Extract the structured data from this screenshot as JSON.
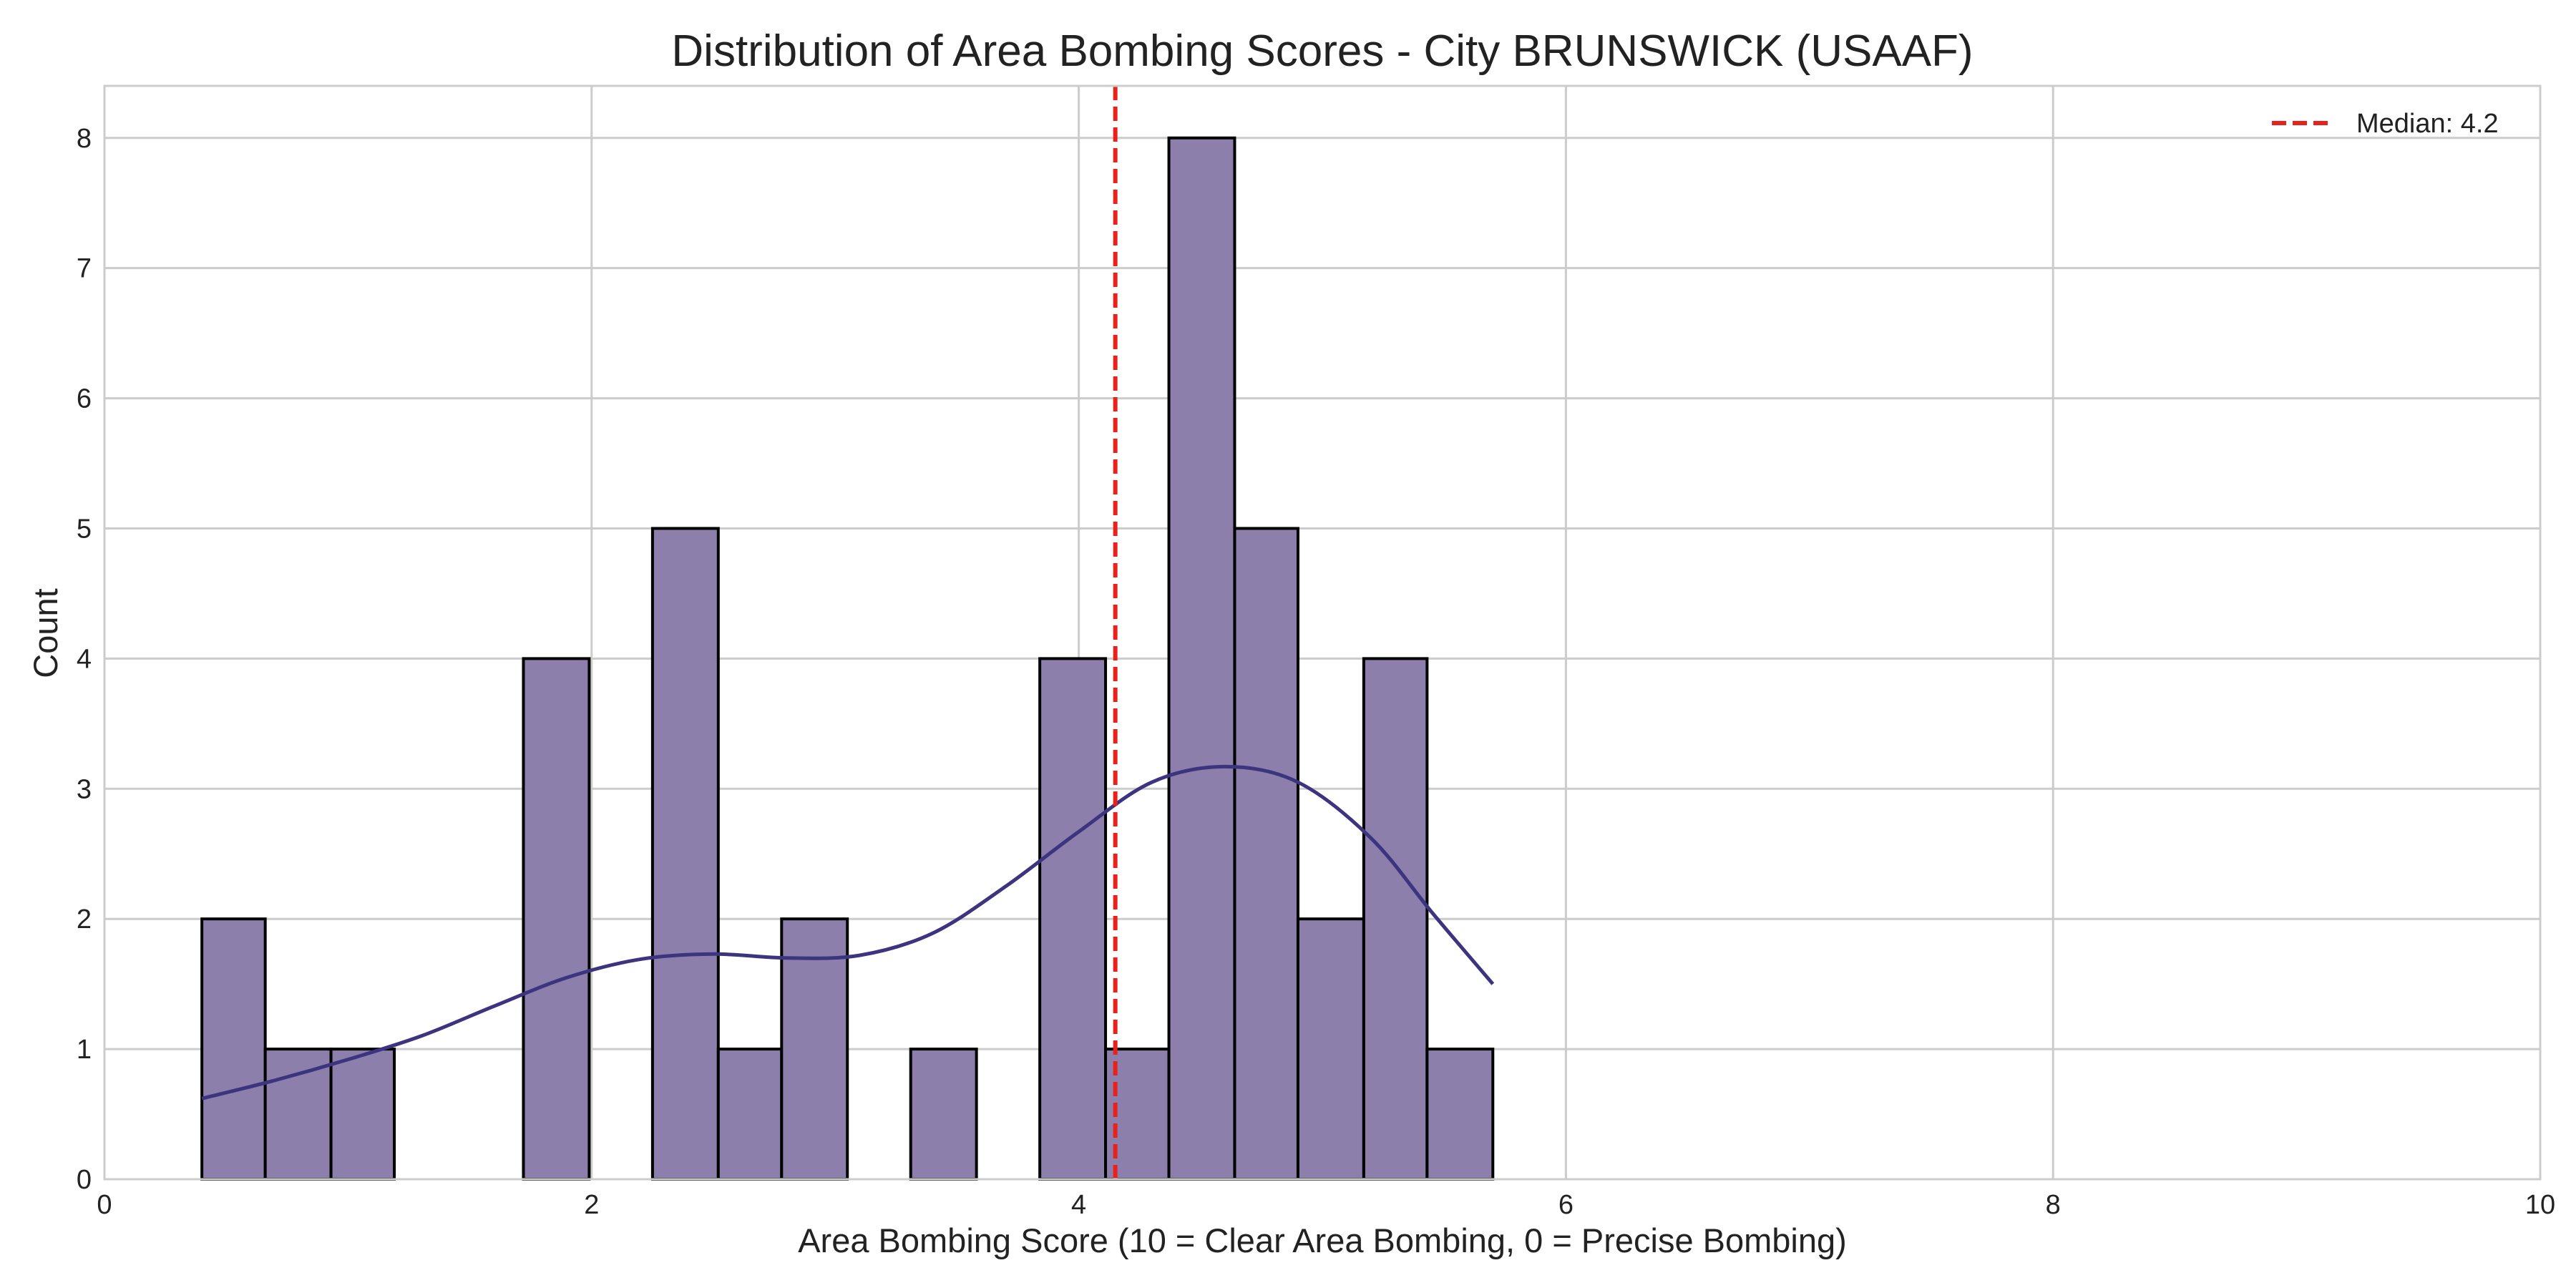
{
  "chart_data": {
    "type": "bar",
    "title": "Distribution of Area Bombing Scores - City BRUNSWICK (USAAF)",
    "xlabel": "Area Bombing Score (10 = Clear Area Bombing, 0 = Precise Bombing)",
    "ylabel": "Count",
    "xlim": [
      0,
      10
    ],
    "ylim": [
      0,
      8.4
    ],
    "xticks": [
      0,
      2,
      4,
      6,
      8,
      10
    ],
    "yticks": [
      0,
      1,
      2,
      3,
      4,
      5,
      6,
      7,
      8
    ],
    "grid": true,
    "legend_position": "top-right",
    "bar_color": "#8c7fac",
    "bar_edge_color": "#000000",
    "bins": [
      {
        "x0": 0.4,
        "x1": 0.66,
        "count": 2
      },
      {
        "x0": 0.66,
        "x1": 0.93,
        "count": 1
      },
      {
        "x0": 0.93,
        "x1": 1.19,
        "count": 1
      },
      {
        "x0": 1.19,
        "x1": 1.46,
        "count": 0
      },
      {
        "x0": 1.46,
        "x1": 1.72,
        "count": 0
      },
      {
        "x0": 1.72,
        "x1": 1.99,
        "count": 4
      },
      {
        "x0": 1.99,
        "x1": 2.25,
        "count": 0
      },
      {
        "x0": 2.25,
        "x1": 2.52,
        "count": 5
      },
      {
        "x0": 2.52,
        "x1": 2.78,
        "count": 1
      },
      {
        "x0": 2.78,
        "x1": 3.05,
        "count": 2
      },
      {
        "x0": 3.05,
        "x1": 3.31,
        "count": 0
      },
      {
        "x0": 3.31,
        "x1": 3.58,
        "count": 1
      },
      {
        "x0": 3.58,
        "x1": 3.84,
        "count": 0
      },
      {
        "x0": 3.84,
        "x1": 4.11,
        "count": 4
      },
      {
        "x0": 4.11,
        "x1": 4.37,
        "count": 1
      },
      {
        "x0": 4.37,
        "x1": 4.64,
        "count": 8
      },
      {
        "x0": 4.64,
        "x1": 4.9,
        "count": 5
      },
      {
        "x0": 4.9,
        "x1": 5.17,
        "count": 2
      },
      {
        "x0": 5.17,
        "x1": 5.43,
        "count": 4
      },
      {
        "x0": 5.43,
        "x1": 5.7,
        "count": 1
      }
    ],
    "kde": {
      "color": "#3d3480",
      "x": [
        0.4,
        0.7,
        1.0,
        1.3,
        1.6,
        1.9,
        2.2,
        2.5,
        2.8,
        3.1,
        3.4,
        3.7,
        4.0,
        4.3,
        4.6,
        4.9,
        5.2,
        5.45,
        5.7
      ],
      "y": [
        0.62,
        0.76,
        0.92,
        1.1,
        1.33,
        1.55,
        1.69,
        1.73,
        1.7,
        1.72,
        1.89,
        2.25,
        2.67,
        3.05,
        3.17,
        3.05,
        2.62,
        2.05,
        1.5
      ]
    },
    "median": {
      "value": 4.15,
      "color": "#e8221b",
      "label": "Median: 4.2"
    }
  }
}
